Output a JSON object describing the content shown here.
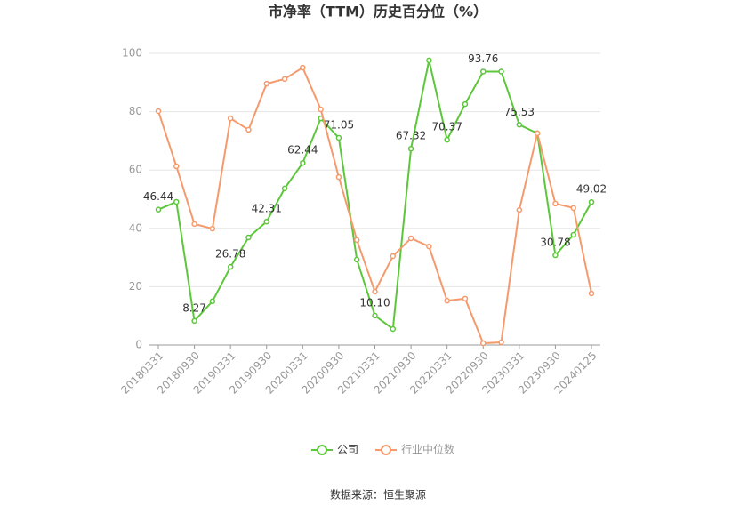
{
  "chart_data": {
    "type": "line",
    "title": "市净率（TTM）历史百分位（%）",
    "source": "数据来源：恒生聚源",
    "categories": [
      "20180331",
      null,
      "20180930",
      null,
      "20190331",
      null,
      "20190930",
      null,
      "20200331",
      null,
      "20200930",
      null,
      "20210331",
      null,
      "20210930",
      null,
      "20220331",
      null,
      "20220930",
      null,
      "20230331",
      null,
      "20230930",
      null,
      "20240125"
    ],
    "series": [
      {
        "name": "公司",
        "color": "#5cc73a",
        "values": [
          46.44,
          49.1,
          8.27,
          15,
          26.78,
          36.9,
          42.31,
          53.7,
          62.44,
          77.7,
          71.05,
          29.3,
          10.1,
          5.5,
          67.32,
          97.6,
          70.37,
          82.6,
          93.76,
          93.76,
          75.53,
          72.6,
          30.78,
          37.8,
          49.02
        ],
        "value_labels": [
          "46.44",
          null,
          "8.27",
          null,
          "26.78",
          null,
          "42.31",
          null,
          "62.44",
          null,
          "71.05",
          null,
          "10.10",
          null,
          "67.32",
          null,
          "70.37",
          null,
          "93.76",
          null,
          "75.53",
          null,
          "30.78",
          null,
          "49.02"
        ]
      },
      {
        "name": "行业中位数",
        "color": "#f59a6c",
        "values": [
          80.2,
          61.3,
          41.5,
          39.9,
          77.7,
          73.8,
          89.6,
          91.2,
          95.1,
          80.8,
          57.6,
          36,
          18.3,
          30.5,
          36.6,
          33.8,
          15.2,
          15.9,
          0.6,
          0.9,
          46.3,
          72.6,
          48.5,
          47,
          17.7
        ]
      }
    ],
    "ylim": [
      0,
      100
    ],
    "yticks": [
      0,
      20,
      40,
      60,
      80,
      100
    ],
    "grid": true
  }
}
